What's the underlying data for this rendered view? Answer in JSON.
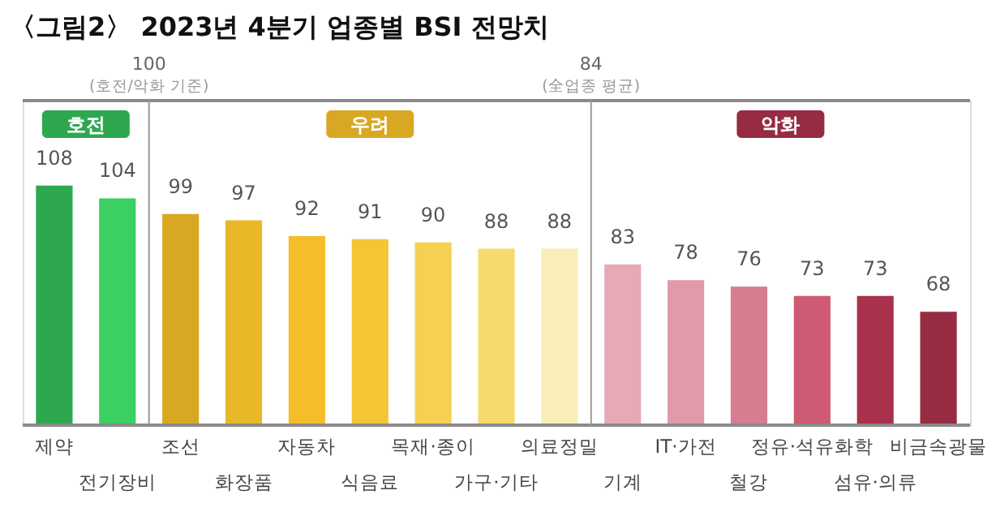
{
  "chart_data": {
    "type": "bar",
    "title": "〈그림2〉 2023년 4분기 업종별 BSI 전망치",
    "categories": [
      "제약",
      "전기장비",
      "조선",
      "화장품",
      "자동차",
      "식음료",
      "목재·종이",
      "가구·기타",
      "의료정밀",
      "기계",
      "IT·가전",
      "철강",
      "정유·석유화학",
      "섬유·의류",
      "비금속광물"
    ],
    "series": [
      {
        "name": "호전",
        "colors": [
          "#2ea84f",
          "#3ccf62",
          null,
          null,
          null,
          null,
          null,
          null,
          null,
          null,
          null,
          null,
          null,
          null,
          null
        ],
        "values": [
          108,
          104,
          null,
          null,
          null,
          null,
          null,
          null,
          null,
          null,
          null,
          null,
          null,
          null,
          null
        ]
      },
      {
        "name": "우려",
        "colors": [
          null,
          null,
          "#d9a823",
          "#e9b829",
          "#f5bd2a",
          "#f5c535",
          "#f6d050",
          "#f7da6e",
          "#faedba",
          null,
          null,
          null,
          null,
          null,
          null
        ],
        "values": [
          null,
          null,
          99,
          97,
          92,
          91,
          90,
          88,
          88,
          null,
          null,
          null,
          null,
          null,
          null
        ]
      },
      {
        "name": "악화",
        "colors": [
          null,
          null,
          null,
          null,
          null,
          null,
          null,
          null,
          null,
          "#e6a9b6",
          "#e09aa9",
          "#d67d8f",
          "#cf5a73",
          "#a9314b",
          "#962b42"
        ],
        "values": [
          null,
          null,
          null,
          null,
          null,
          null,
          null,
          null,
          null,
          83,
          78,
          76,
          73,
          73,
          68
        ]
      }
    ],
    "ylim": [
      32,
      135
    ],
    "data_labels": true,
    "annotations": [
      "100",
      "(호전/악화 기준)",
      "84",
      "(全업종 평균)"
    ]
  }
}
